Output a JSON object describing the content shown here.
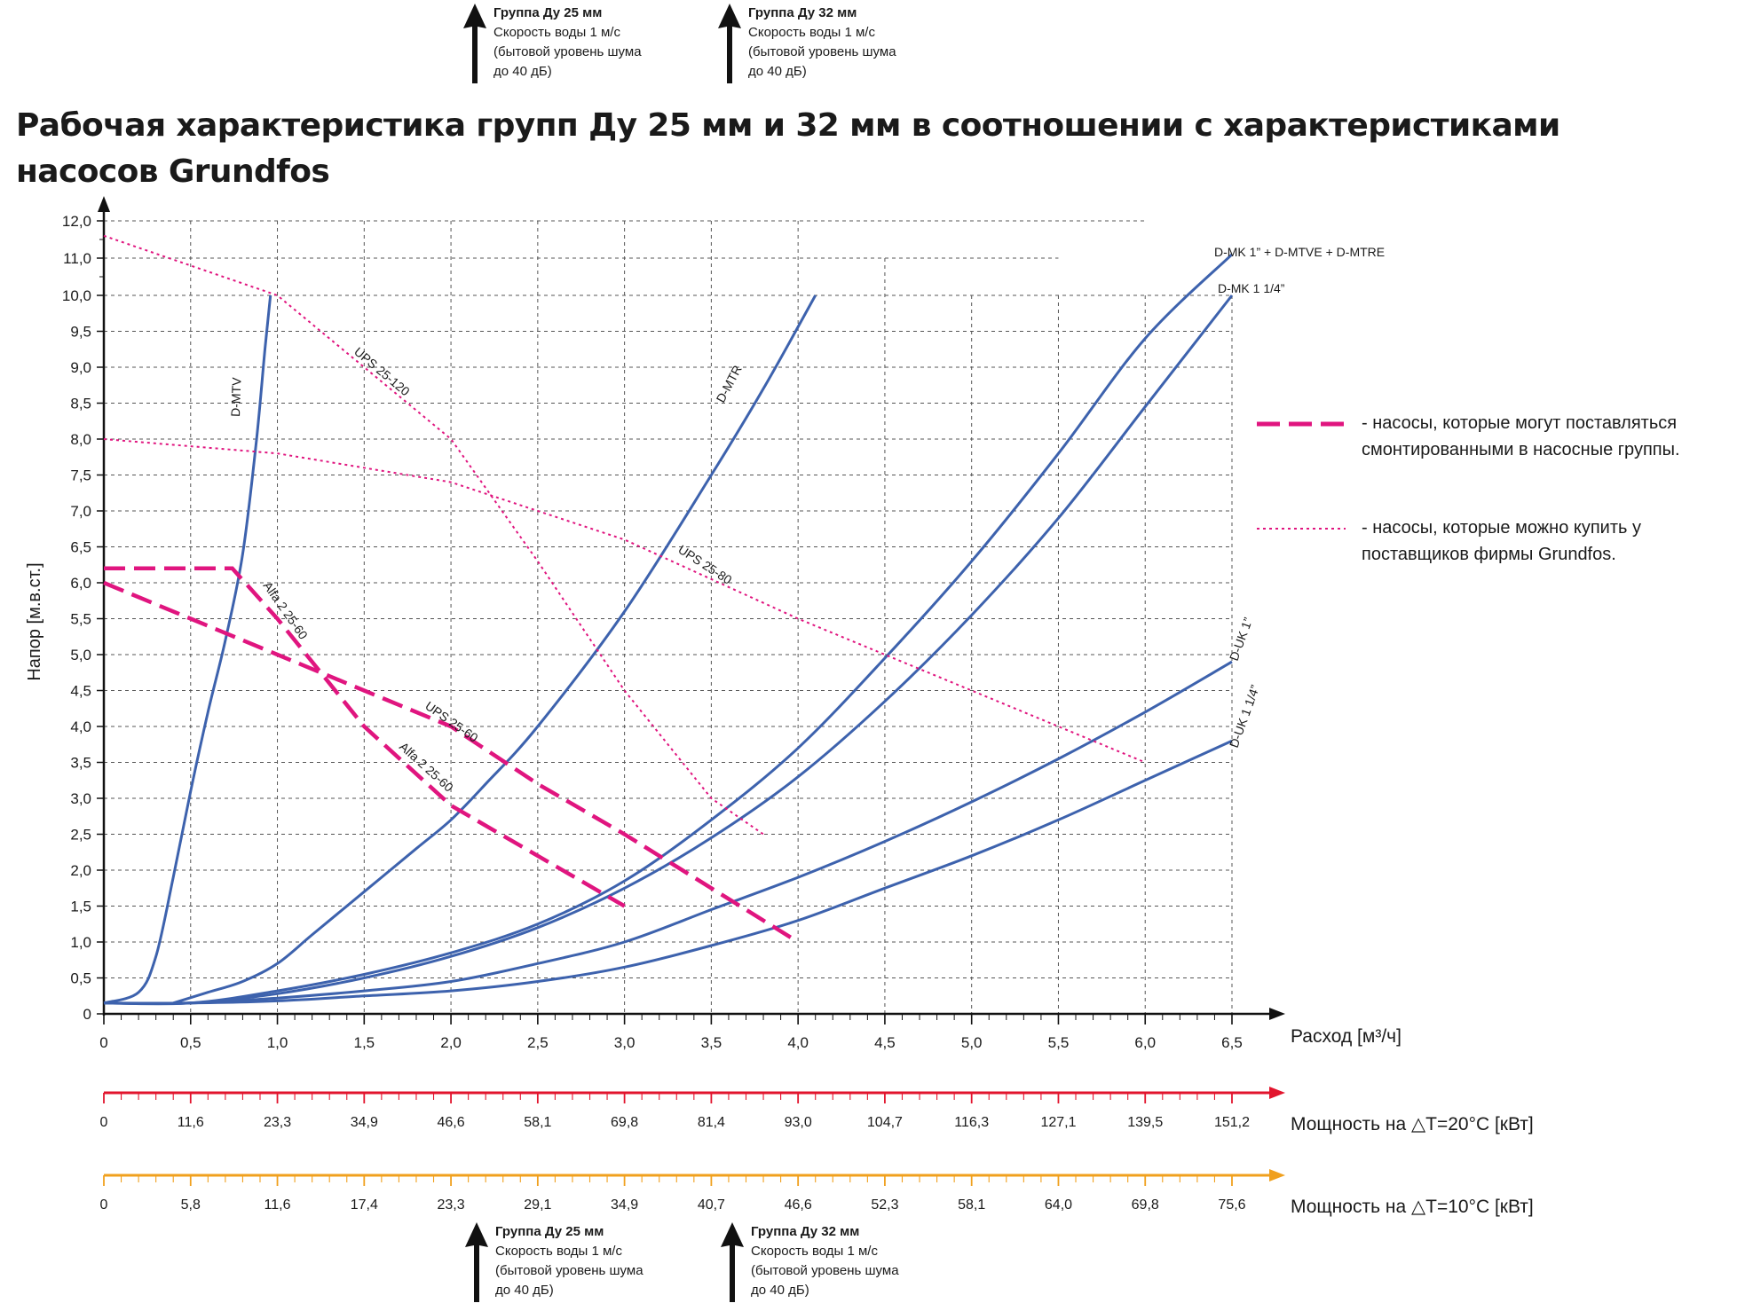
{
  "title": "Рабочая характеристика групп Ду 25 мм и 32 мм в соотношении с характеристиками насосов Grundfos",
  "top_notes": [
    {
      "title": "Группа Ду 25 мм",
      "lines": [
        "Скорость воды 1 м/с",
        "(бытовой уровень шума",
        "до 40 дБ)"
      ]
    },
    {
      "title": "Группа Ду 32 мм",
      "lines": [
        "Скорость воды 1 м/с",
        "(бытовой уровень шума",
        "до 40 дБ)"
      ]
    }
  ],
  "bottom_notes": [
    {
      "title": "Группа Ду 25 мм",
      "lines": [
        "Скорость воды 1 м/с",
        "(бытовой уровень шума",
        "до 40 дБ)"
      ]
    },
    {
      "title": "Группа Ду 32 мм",
      "lines": [
        "Скорость воды 1 м/с",
        "(бытовой уровень шума",
        "до 40 дБ)"
      ]
    }
  ],
  "legend": [
    {
      "style": "dashed",
      "color": "#e0157f",
      "text": "- насосы, которые могут поставляться смонтированными в насосные группы."
    },
    {
      "style": "dotted",
      "color": "#e0157f",
      "text": "- насосы, которые можно купить у поставщиков фирмы Grundfos."
    }
  ],
  "colors": {
    "system": "#3d62ad",
    "pump": "#e0157f",
    "axis_red": "#e2142d",
    "axis_orange": "#f0a01e",
    "grid": "#555555",
    "text": "#1a1a1a"
  },
  "chart_data": {
    "type": "line",
    "xlabel": "Расход [м³/ч]",
    "ylabel": "Напор [м.в.ст.]",
    "xlim": [
      0,
      6.5
    ],
    "ylim": [
      0,
      12
    ],
    "x_ticks": [
      "0",
      "0,5",
      "1,0",
      "1,5",
      "2,0",
      "2,5",
      "3,0",
      "3,5",
      "4,0",
      "4,5",
      "5,0",
      "5,5",
      "6,0",
      "6,5"
    ],
    "y_ticks": [
      "0",
      "0,5",
      "1,0",
      "1,5",
      "2,0",
      "2,5",
      "3,0",
      "3,5",
      "4,0",
      "4,5",
      "5,0",
      "5,5",
      "6,0",
      "6,5",
      "7,0",
      "7,5",
      "8,0",
      "8,5",
      "9,0",
      "9,5",
      "10,0",
      "11,0",
      "12,0"
    ],
    "grid": true,
    "series": [
      {
        "name": "D-MTV",
        "kind": "system",
        "points": [
          [
            0,
            0.15
          ],
          [
            0.2,
            0.3
          ],
          [
            0.3,
            0.8
          ],
          [
            0.4,
            1.9
          ],
          [
            0.5,
            3.1
          ],
          [
            0.6,
            4.2
          ],
          [
            0.7,
            5.2
          ],
          [
            0.8,
            6.4
          ],
          [
            0.88,
            8.0
          ],
          [
            0.93,
            9.3
          ],
          [
            0.96,
            10.0
          ]
        ]
      },
      {
        "name": "D-MTR",
        "kind": "system",
        "points": [
          [
            0.4,
            0.15
          ],
          [
            0.6,
            0.3
          ],
          [
            0.8,
            0.45
          ],
          [
            1.0,
            0.7
          ],
          [
            1.2,
            1.1
          ],
          [
            1.5,
            1.7
          ],
          [
            1.8,
            2.3
          ],
          [
            2.0,
            2.7
          ],
          [
            2.2,
            3.2
          ],
          [
            2.5,
            4.0
          ],
          [
            3.0,
            5.6
          ],
          [
            3.5,
            7.5
          ],
          [
            3.8,
            8.7
          ],
          [
            4.1,
            10.0
          ]
        ]
      },
      {
        "name": "D-MK 1\" + D-MTVE + D-MTRE",
        "kind": "system",
        "points": [
          [
            0,
            0.15
          ],
          [
            0.5,
            0.15
          ],
          [
            1.0,
            0.32
          ],
          [
            1.5,
            0.55
          ],
          [
            2.0,
            0.85
          ],
          [
            2.5,
            1.25
          ],
          [
            3.0,
            1.85
          ],
          [
            3.5,
            2.7
          ],
          [
            4.0,
            3.7
          ],
          [
            4.5,
            4.95
          ],
          [
            5.0,
            6.3
          ],
          [
            5.5,
            7.8
          ],
          [
            6.0,
            9.4
          ],
          [
            6.5,
            11.1
          ]
        ]
      },
      {
        "name": "D-MK 1 1/4\"",
        "kind": "system",
        "points": [
          [
            0,
            0.15
          ],
          [
            0.5,
            0.15
          ],
          [
            1.0,
            0.28
          ],
          [
            1.5,
            0.5
          ],
          [
            2.0,
            0.8
          ],
          [
            2.5,
            1.2
          ],
          [
            3.0,
            1.75
          ],
          [
            3.5,
            2.45
          ],
          [
            4.0,
            3.3
          ],
          [
            4.5,
            4.35
          ],
          [
            5.0,
            5.55
          ],
          [
            5.5,
            6.9
          ],
          [
            6.0,
            8.45
          ],
          [
            6.5,
            10.0
          ]
        ]
      },
      {
        "name": "D-UK 1\"",
        "kind": "system",
        "points": [
          [
            0,
            0.15
          ],
          [
            0.5,
            0.15
          ],
          [
            1.0,
            0.22
          ],
          [
            1.5,
            0.32
          ],
          [
            2.0,
            0.45
          ],
          [
            2.5,
            0.7
          ],
          [
            3.0,
            1.0
          ],
          [
            3.5,
            1.45
          ],
          [
            4.0,
            1.9
          ],
          [
            4.5,
            2.4
          ],
          [
            5.0,
            2.95
          ],
          [
            5.5,
            3.55
          ],
          [
            6.0,
            4.2
          ],
          [
            6.5,
            4.9
          ]
        ]
      },
      {
        "name": "D-UK 1 1/4\"",
        "kind": "system",
        "points": [
          [
            0,
            0.15
          ],
          [
            0.5,
            0.15
          ],
          [
            1.0,
            0.18
          ],
          [
            1.5,
            0.25
          ],
          [
            2.0,
            0.32
          ],
          [
            2.5,
            0.45
          ],
          [
            3.0,
            0.65
          ],
          [
            3.5,
            0.95
          ],
          [
            4.0,
            1.3
          ],
          [
            4.5,
            1.75
          ],
          [
            5.0,
            2.2
          ],
          [
            5.5,
            2.7
          ],
          [
            6.0,
            3.25
          ],
          [
            6.5,
            3.8
          ]
        ]
      },
      {
        "name": "UPS 25-120",
        "kind": "purchase",
        "points": [
          [
            0,
            11.6
          ],
          [
            0.5,
            10.8
          ],
          [
            1.0,
            10.0
          ],
          [
            1.5,
            9.0
          ],
          [
            2.0,
            8.0
          ],
          [
            2.5,
            6.3
          ],
          [
            3.0,
            4.5
          ],
          [
            3.5,
            3.0
          ],
          [
            3.8,
            2.5
          ]
        ]
      },
      {
        "name": "UPS 25-80",
        "kind": "purchase",
        "points": [
          [
            0,
            8.0
          ],
          [
            1.0,
            7.8
          ],
          [
            2.0,
            7.4
          ],
          [
            3.0,
            6.6
          ],
          [
            4.0,
            5.5
          ],
          [
            5.0,
            4.5
          ],
          [
            6.0,
            3.5
          ]
        ]
      },
      {
        "name": "UPS 25-60",
        "kind": "group",
        "points": [
          [
            0,
            6.0
          ],
          [
            0.5,
            5.5
          ],
          [
            1.0,
            5.0
          ],
          [
            1.5,
            4.5
          ],
          [
            2.0,
            4.0
          ],
          [
            2.5,
            3.2
          ],
          [
            3.0,
            2.5
          ],
          [
            3.5,
            1.75
          ],
          [
            4.0,
            1.0
          ]
        ]
      },
      {
        "name": "Alfa 2 25-60",
        "kind": "group",
        "points": [
          [
            0,
            6.2
          ],
          [
            0.74,
            6.2
          ],
          [
            1.0,
            5.5
          ],
          [
            1.5,
            4.0
          ],
          [
            2.0,
            2.9
          ],
          [
            2.5,
            2.2
          ],
          [
            3.0,
            1.5
          ]
        ]
      }
    ],
    "secondary_axes": [
      {
        "label": "Мощность на △T=20°C [кВт]",
        "color": "#e2142d",
        "ticks": [
          "0",
          "11,6",
          "23,3",
          "34,9",
          "46,6",
          "58,1",
          "69,8",
          "81,4",
          "93,0",
          "104,7",
          "116,3",
          "127,1",
          "139,5",
          "151,2"
        ]
      },
      {
        "label": "Мощность на △T=10°C [кВт]",
        "color": "#f0a01e",
        "ticks": [
          "0",
          "5,8",
          "11,6",
          "17,4",
          "23,3",
          "29,1",
          "34,9",
          "40,7",
          "46,6",
          "52,3",
          "58,1",
          "64,0",
          "69,8",
          "75,6"
        ]
      }
    ],
    "annotations": [
      {
        "text": "D-MTV",
        "series": "D-MTV"
      },
      {
        "text": "D-MTR",
        "series": "D-MTR"
      },
      {
        "text": "D-MK 1” + D-MTVE + D-MTRE",
        "series": "D-MK 1\" + D-MTVE + D-MTRE"
      },
      {
        "text": "D-MK 1 1/4”",
        "series": "D-MK 1 1/4\""
      },
      {
        "text": "D-UK 1”",
        "series": "D-UK 1\""
      },
      {
        "text": "D-UK 1 1/4”",
        "series": "D-UK 1 1/4\""
      },
      {
        "text": "UPS 25-120",
        "series": "UPS 25-120"
      },
      {
        "text": "UPS 25-80",
        "series": "UPS 25-80"
      },
      {
        "text": "UPS 25-60",
        "series": "UPS 25-60"
      },
      {
        "text": "Alfa 2 25-60",
        "series": "Alfa 2 25-60"
      },
      {
        "text": "Alfa 2 25-60",
        "series": "Alfa 2 25-60"
      }
    ]
  }
}
